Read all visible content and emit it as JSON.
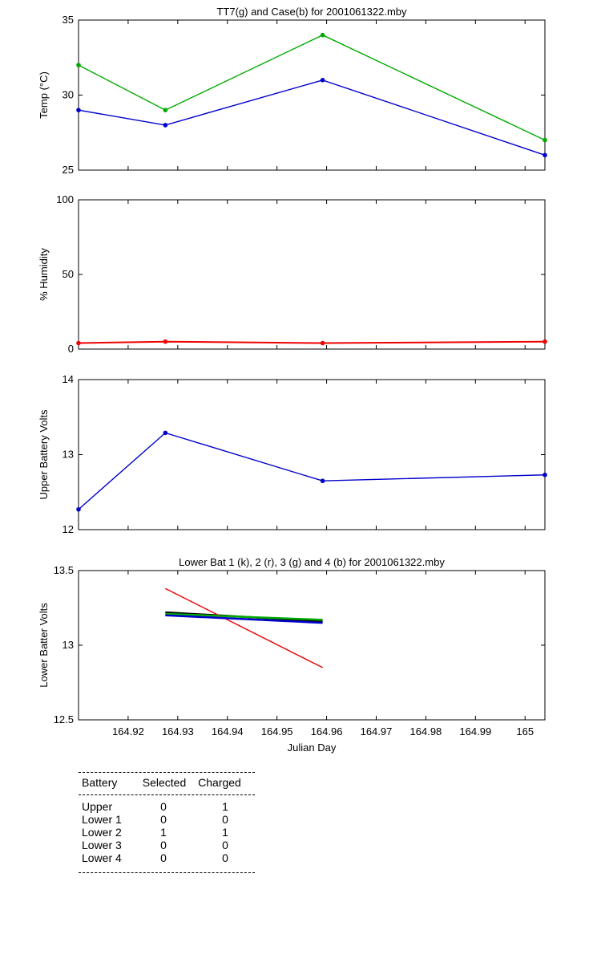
{
  "chart_data": [
    {
      "type": "line",
      "title": "TT7(g) and Case(b) for 2001061322.mby",
      "xlabel": "",
      "ylabel": "Temp  (°C)",
      "xlim": [
        164.91,
        165.004
      ],
      "ylim": [
        25,
        35
      ],
      "yticks": [
        "25",
        "30",
        "35"
      ],
      "series": [
        {
          "color": "#00aa00",
          "x": [
            164.91,
            164.9275,
            164.9592,
            165.004
          ],
          "y": [
            32,
            29,
            34,
            27
          ]
        },
        {
          "color": "#0000cc",
          "x": [
            164.91,
            164.9275,
            164.9592,
            165.004
          ],
          "y": [
            29,
            28,
            31,
            26
          ]
        }
      ]
    },
    {
      "type": "line",
      "title": "",
      "xlabel": "",
      "ylabel": "% Humidity",
      "xlim": [
        164.91,
        165.004
      ],
      "ylim": [
        0,
        100
      ],
      "yticks": [
        "0",
        "50",
        "100"
      ],
      "series": [
        {
          "color": "#ee0000",
          "x": [
            164.91,
            164.9275,
            164.9592,
            165.004
          ],
          "y": [
            4,
            5,
            4,
            5
          ]
        }
      ]
    },
    {
      "type": "line",
      "title": "",
      "xlabel": "",
      "ylabel": "Upper Battery Volts",
      "xlim": [
        164.91,
        165.004
      ],
      "ylim": [
        12,
        14
      ],
      "yticks": [
        "12",
        "13",
        "14"
      ],
      "series": [
        {
          "color": "#0000cc",
          "x": [
            164.91,
            164.9275,
            164.9592,
            165.004
          ],
          "y": [
            12.27,
            13.29,
            12.65,
            12.73
          ]
        }
      ]
    },
    {
      "type": "line",
      "title": "Lower Bat 1 (k), 2 (r), 3 (g) and 4 (b) for 2001061322.mby",
      "xlabel": "Julian Day",
      "ylabel": "Lower Batter Volts",
      "xlim": [
        164.91,
        165.004
      ],
      "ylim": [
        12.5,
        13.5
      ],
      "yticks": [
        "12.5",
        "13",
        "13.5"
      ],
      "xticks": [
        "164.92",
        "164.93",
        "164.94",
        "164.95",
        "164.96",
        "164.97",
        "164.98",
        "164.99",
        "165"
      ],
      "series": [
        {
          "color": "#000000",
          "x": [
            164.9275,
            164.9592
          ],
          "y": [
            13.22,
            13.16
          ]
        },
        {
          "color": "#ee0000",
          "x": [
            164.9275,
            164.9592
          ],
          "y": [
            13.38,
            12.85
          ]
        },
        {
          "color": "#00aa00",
          "x": [
            164.9275,
            164.9592
          ],
          "y": [
            13.21,
            13.17
          ]
        },
        {
          "color": "#0000cc",
          "x": [
            164.9275,
            164.9592
          ],
          "y": [
            13.2,
            13.15
          ]
        }
      ]
    }
  ],
  "battery_table": {
    "headers": {
      "battery": "Battery",
      "selected": "Selected",
      "charged": "Charged"
    },
    "rows": [
      {
        "battery": "Upper",
        "selected": "0",
        "charged": "1"
      },
      {
        "battery": "Lower 1",
        "selected": "0",
        "charged": "0"
      },
      {
        "battery": "Lower 2",
        "selected": "1",
        "charged": "1"
      },
      {
        "battery": "Lower 3",
        "selected": "0",
        "charged": "0"
      },
      {
        "battery": "Lower 4",
        "selected": "0",
        "charged": "0"
      }
    ]
  }
}
